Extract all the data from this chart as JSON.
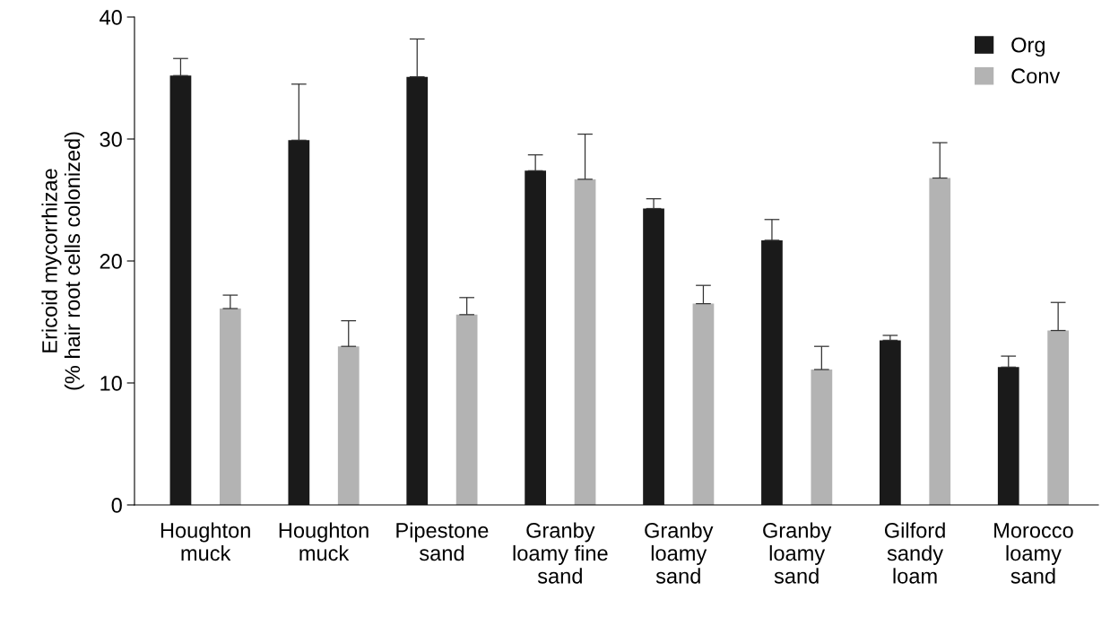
{
  "chart_data": {
    "type": "bar",
    "ylabel": "Ericoid mycorrhizae\n(% hair root cells colonized)",
    "categories": [
      "Houghton\nmuck",
      "Houghton\nmuck",
      "Pipestone\nsand",
      "Granby\nloamy fine\nsand",
      "Granby\nloamy\nsand",
      "Granby\nloamy\nsand",
      "Gilford\nsandy\nloam",
      "Morocco\nloamy\nsand"
    ],
    "series": [
      {
        "name": "Org",
        "color": "#1a1a1a",
        "values": [
          35.2,
          29.9,
          35.1,
          27.4,
          24.3,
          21.7,
          13.5,
          11.3
        ],
        "errors": [
          [
            35.2,
            36.6
          ],
          [
            29.9,
            34.5
          ],
          [
            35.1,
            38.2
          ],
          [
            27.4,
            28.7
          ],
          [
            24.3,
            25.1
          ],
          [
            21.7,
            23.4
          ],
          [
            13.5,
            13.9
          ],
          [
            11.3,
            12.2
          ]
        ]
      },
      {
        "name": "Conv",
        "color": "#b3b3b3",
        "values": [
          16.1,
          13.0,
          15.6,
          26.7,
          16.5,
          11.1,
          26.8,
          14.3
        ],
        "errors": [
          [
            16.1,
            17.2
          ],
          [
            13.0,
            15.1
          ],
          [
            15.6,
            17.0
          ],
          [
            26.7,
            30.4
          ],
          [
            16.5,
            18.0
          ],
          [
            11.1,
            13.0
          ],
          [
            26.8,
            29.7
          ],
          [
            14.3,
            16.6
          ]
        ]
      }
    ],
    "ylim": [
      0,
      40
    ],
    "yticks": [
      0,
      10,
      20,
      30,
      40
    ],
    "grid": false,
    "legend": "top right"
  }
}
